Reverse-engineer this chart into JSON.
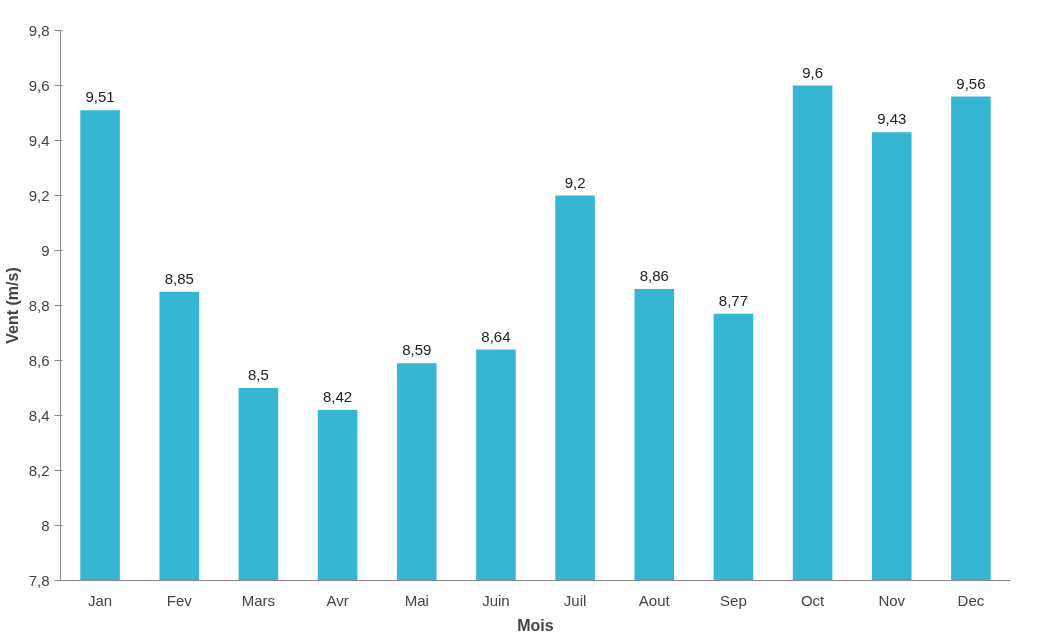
{
  "chart_data": {
    "type": "bar",
    "xlabel": "Mois",
    "ylabel": "Vent (m/s)",
    "categories": [
      "Jan",
      "Fev",
      "Mars",
      "Avr",
      "Mai",
      "Juin",
      "Juil",
      "Aout",
      "Sep",
      "Oct",
      "Nov",
      "Dec"
    ],
    "values": [
      9.51,
      8.85,
      8.5,
      8.42,
      8.59,
      8.64,
      9.2,
      8.86,
      8.77,
      9.6,
      9.43,
      9.56
    ],
    "value_labels": [
      "9,51",
      "8,85",
      "8,5",
      "8,42",
      "8,59",
      "8,64",
      "9,2",
      "8,86",
      "8,77",
      "9,6",
      "9,43",
      "9,56"
    ],
    "color": "#35b6d3",
    "ylim": [
      7.8,
      9.8
    ],
    "yticks": [
      {
        "value": 7.8,
        "label": "7,8"
      },
      {
        "value": 8,
        "label": "8"
      },
      {
        "value": 8.2,
        "label": "8,2"
      },
      {
        "value": 8.4,
        "label": "8,4"
      },
      {
        "value": 8.6,
        "label": "8,6"
      },
      {
        "value": 8.8,
        "label": "8,8"
      },
      {
        "value": 9,
        "label": "9"
      },
      {
        "value": 9.2,
        "label": "9,2"
      },
      {
        "value": 9.4,
        "label": "9,4"
      },
      {
        "value": 9.6,
        "label": "9,6"
      },
      {
        "value": 9.8,
        "label": "9,8"
      }
    ],
    "grid": false
  }
}
